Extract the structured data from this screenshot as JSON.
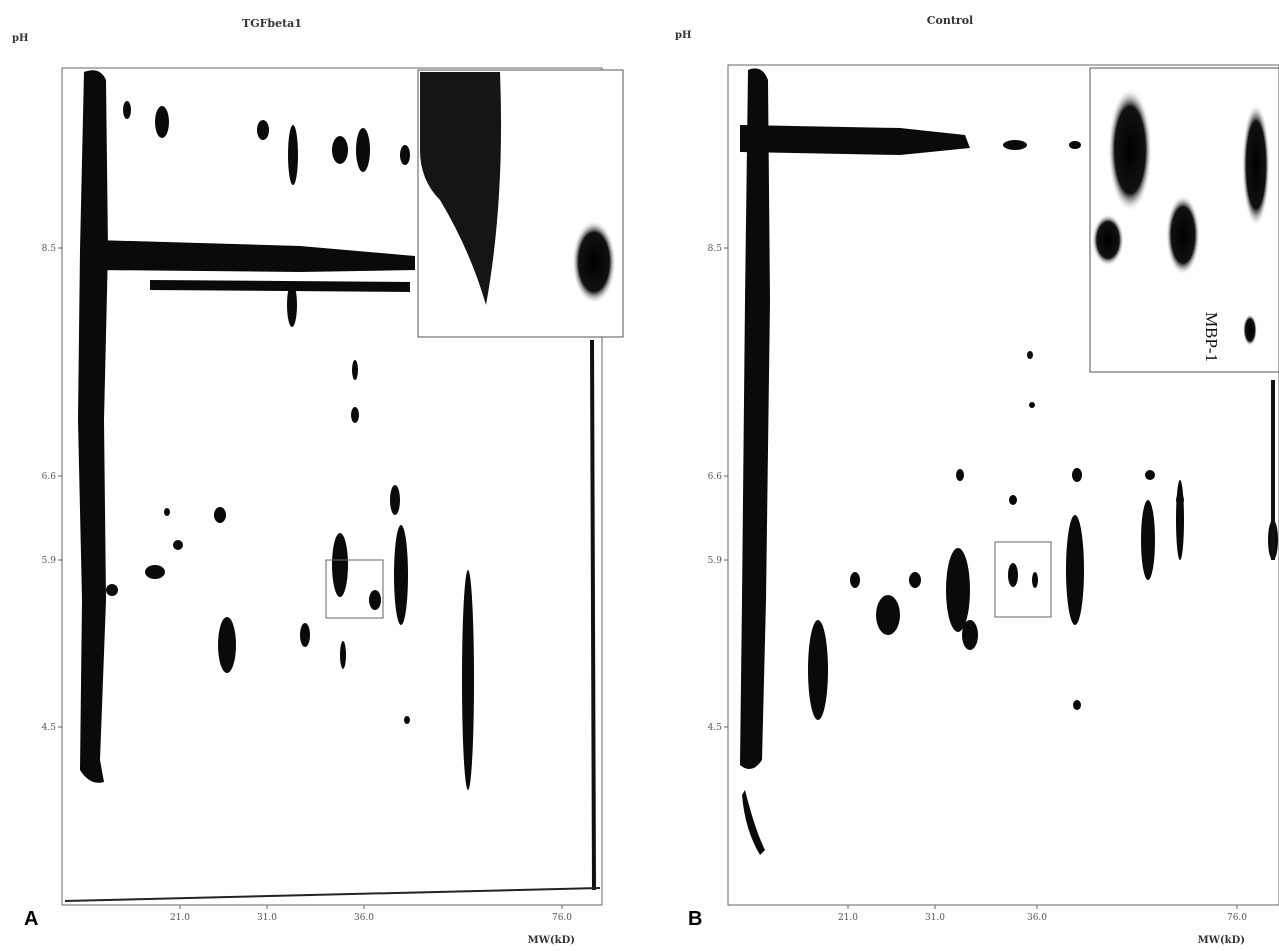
{
  "panels": [
    {
      "letter": "A",
      "title": "TGFbeta1",
      "y_axis_label": "pH",
      "x_axis_label": "MW(kD)",
      "yticks": [
        "8.5",
        "6.6",
        "5.9",
        "4.5"
      ],
      "xticks": [
        "21.0",
        "31.0",
        "36.0",
        "76.0"
      ]
    },
    {
      "letter": "B",
      "title": "Control",
      "y_axis_label": "pH",
      "x_axis_label": "MW(kD)",
      "yticks": [
        "8.5",
        "6.6",
        "5.9",
        "4.5"
      ],
      "xticks": [
        "21.0",
        "31.0",
        "36.0",
        "76.0"
      ],
      "inset_label": "MBP-1"
    }
  ]
}
